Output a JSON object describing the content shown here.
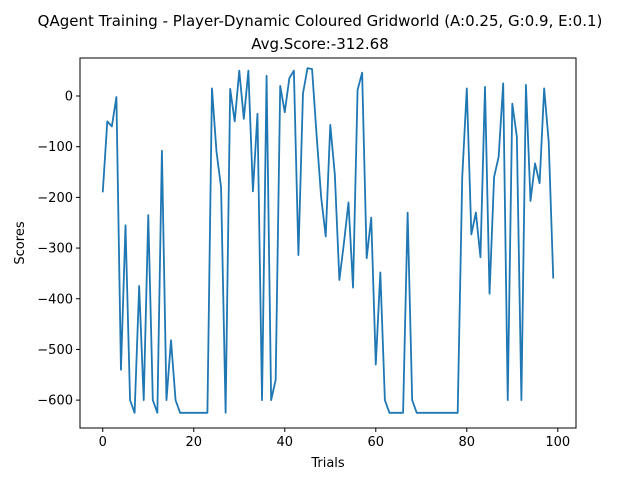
{
  "chart_data": {
    "type": "line",
    "title": "QAgent Training - Player-Dynamic Coloured Gridworld (A:0.25, G:0.9, E:0.1)",
    "subtitle": "Avg.Score:-312.68",
    "xlabel": "Trials",
    "ylabel": "Scores",
    "xlim": [
      -5,
      104
    ],
    "ylim": [
      -655,
      75
    ],
    "xticks": [
      0,
      20,
      40,
      60,
      80,
      100
    ],
    "yticks": [
      -600,
      -500,
      -400,
      -300,
      -200,
      -100,
      0
    ],
    "grid": false,
    "line_color": "#1f77b4",
    "x": [
      0,
      1,
      2,
      3,
      4,
      5,
      6,
      7,
      8,
      9,
      10,
      11,
      12,
      13,
      14,
      15,
      16,
      17,
      18,
      19,
      20,
      21,
      22,
      23,
      24,
      25,
      26,
      27,
      28,
      29,
      30,
      31,
      32,
      33,
      34,
      35,
      36,
      37,
      38,
      39,
      40,
      41,
      42,
      43,
      44,
      45,
      46,
      47,
      48,
      49,
      50,
      51,
      52,
      53,
      54,
      55,
      56,
      57,
      58,
      59,
      60,
      61,
      62,
      63,
      64,
      65,
      66,
      67,
      68,
      69,
      70,
      71,
      72,
      73,
      74,
      75,
      76,
      77,
      78,
      79,
      80,
      81,
      82,
      83,
      84,
      85,
      86,
      87,
      88,
      89,
      90,
      91,
      92,
      93,
      94,
      95,
      96,
      97,
      98,
      99
    ],
    "values": [
      -190,
      -50,
      -60,
      -2,
      -540,
      -255,
      -600,
      -625,
      -375,
      -600,
      -235,
      -600,
      -625,
      -108,
      -600,
      -482,
      -600,
      -625,
      -625,
      -625,
      -625,
      -625,
      -625,
      -625,
      15,
      -110,
      -180,
      -625,
      14,
      -50,
      50,
      -45,
      50,
      -188,
      -35,
      -600,
      40,
      -600,
      -560,
      20,
      -32,
      35,
      50,
      -314,
      5,
      55,
      53,
      -78,
      -200,
      -277,
      -57,
      -155,
      -363,
      -290,
      -210,
      -378,
      12,
      46,
      -320,
      -240,
      -530,
      -348,
      -600,
      -625,
      -625,
      -625,
      -625,
      -230,
      -600,
      -625,
      -625,
      -625,
      -625,
      -625,
      -625,
      -625,
      -625,
      -625,
      -625,
      -160,
      15,
      -273,
      -230,
      -318,
      18,
      -390,
      -160,
      -120,
      25,
      -600,
      -15,
      -80,
      -600,
      22,
      -207,
      -133,
      -172,
      15,
      -90,
      -360
    ]
  }
}
